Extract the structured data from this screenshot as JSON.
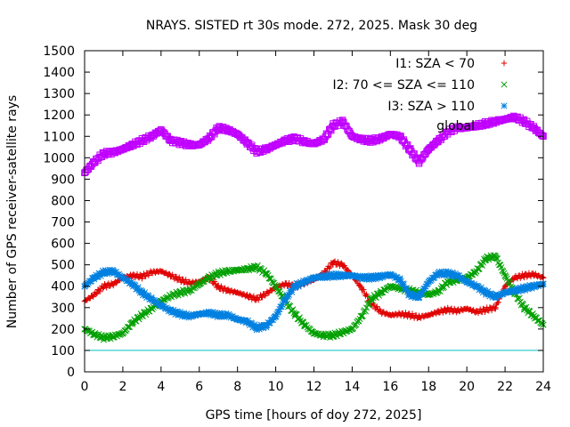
{
  "chart_data": {
    "type": "scatter",
    "title": "NRAYS. SISTED rt 30s mode. 272, 2025. Mask 30 deg",
    "xlabel": "GPS time [hours of doy 272, 2025]",
    "ylabel": "Number of GPS receiver-satellite rays",
    "xlim": [
      0,
      24
    ],
    "ylim": [
      0,
      1500
    ],
    "x_ticks": [
      0,
      2,
      4,
      6,
      8,
      10,
      12,
      14,
      16,
      18,
      20,
      22,
      24
    ],
    "y_ticks": [
      0,
      100,
      200,
      300,
      400,
      500,
      600,
      700,
      800,
      900,
      1000,
      1100,
      1200,
      1300,
      1400,
      1500
    ],
    "legend_position": "top-right",
    "threshold": {
      "value": 100,
      "color": "#00c0c0"
    },
    "series": [
      {
        "name": "I1: SZA < 70",
        "marker": "plus",
        "color": "#e00000",
        "x": [
          0,
          0.5,
          1,
          1.5,
          2,
          2.5,
          3,
          3.5,
          4,
          4.5,
          5,
          5.5,
          6,
          6.5,
          7,
          7.5,
          8,
          8.5,
          9,
          9.5,
          10,
          10.5,
          11,
          11.5,
          12,
          12.5,
          13,
          13.5,
          14,
          14.5,
          15,
          15.5,
          16,
          16.5,
          17,
          17.5,
          18,
          18.5,
          19,
          19.5,
          20,
          20.5,
          21,
          21.5,
          22,
          22.5,
          23,
          23.5,
          24
        ],
        "values": [
          330,
          360,
          400,
          410,
          440,
          450,
          445,
          465,
          470,
          450,
          430,
          415,
          420,
          440,
          395,
          380,
          370,
          355,
          340,
          365,
          395,
          410,
          400,
          415,
          430,
          460,
          510,
          500,
          450,
          390,
          320,
          280,
          265,
          270,
          265,
          255,
          265,
          280,
          290,
          285,
          295,
          280,
          290,
          300,
          400,
          440,
          450,
          455,
          440
        ]
      },
      {
        "name": "I2: 70 <= SZA <= 110",
        "marker": "cross",
        "color": "#00a000",
        "x": [
          0,
          0.5,
          1,
          1.5,
          2,
          2.5,
          3,
          3.5,
          4,
          4.5,
          5,
          5.5,
          6,
          6.5,
          7,
          7.5,
          8,
          8.5,
          9,
          9.5,
          10,
          10.5,
          11,
          11.5,
          12,
          12.5,
          13,
          13.5,
          14,
          14.5,
          15,
          15.5,
          16,
          16.5,
          17,
          17.5,
          18,
          18.5,
          19,
          19.5,
          20,
          20.5,
          21,
          21.5,
          22,
          22.5,
          23,
          23.5,
          24
        ],
        "values": [
          200,
          175,
          160,
          165,
          180,
          230,
          265,
          295,
          330,
          355,
          370,
          380,
          410,
          440,
          460,
          470,
          475,
          480,
          490,
          460,
          400,
          330,
          270,
          220,
          180,
          170,
          170,
          185,
          200,
          260,
          340,
          370,
          400,
          390,
          380,
          370,
          360,
          375,
          420,
          430,
          440,
          470,
          530,
          540,
          450,
          370,
          300,
          260,
          220
        ]
      },
      {
        "name": "I3: SZA > 110",
        "marker": "star",
        "color": "#0080e0",
        "x": [
          0,
          0.5,
          1,
          1.5,
          2,
          2.5,
          3,
          3.5,
          4,
          4.5,
          5,
          5.5,
          6,
          6.5,
          7,
          7.5,
          8,
          8.5,
          9,
          9.5,
          10,
          10.5,
          11,
          11.5,
          12,
          12.5,
          13,
          13.5,
          14,
          14.5,
          15,
          15.5,
          16,
          16.5,
          17,
          17.5,
          18,
          18.5,
          19,
          19.5,
          20,
          20.5,
          21,
          21.5,
          22,
          22.5,
          23,
          23.5,
          24
        ],
        "values": [
          400,
          440,
          465,
          470,
          440,
          410,
          370,
          340,
          310,
          285,
          270,
          260,
          270,
          275,
          265,
          265,
          245,
          235,
          205,
          215,
          260,
          340,
          400,
          420,
          440,
          445,
          450,
          450,
          450,
          440,
          440,
          445,
          455,
          430,
          360,
          350,
          420,
          460,
          460,
          450,
          420,
          400,
          370,
          350,
          370,
          380,
          390,
          400,
          410
        ]
      },
      {
        "name": "global",
        "marker": "square",
        "color": "#c000ff",
        "x": [
          0,
          0.5,
          1,
          1.5,
          2,
          2.5,
          3,
          3.5,
          4,
          4.5,
          5,
          5.5,
          6,
          6.5,
          7,
          7.5,
          8,
          8.5,
          9,
          9.5,
          10,
          10.5,
          11,
          11.5,
          12,
          12.5,
          13,
          13.5,
          14,
          14.5,
          15,
          15.5,
          16,
          16.5,
          17,
          17.5,
          18,
          18.5,
          19,
          19.5,
          20,
          20.5,
          21,
          21.5,
          22,
          22.5,
          23,
          23.5,
          24
        ],
        "values": [
          930,
          980,
          1020,
          1025,
          1040,
          1060,
          1080,
          1100,
          1130,
          1080,
          1070,
          1060,
          1060,
          1090,
          1140,
          1130,
          1110,
          1070,
          1030,
          1040,
          1060,
          1080,
          1090,
          1075,
          1065,
          1085,
          1150,
          1170,
          1100,
          1085,
          1080,
          1090,
          1110,
          1100,
          1040,
          980,
          1040,
          1080,
          1120,
          1140,
          1140,
          1150,
          1160,
          1170,
          1180,
          1190,
          1170,
          1140,
          1100
        ]
      }
    ]
  }
}
